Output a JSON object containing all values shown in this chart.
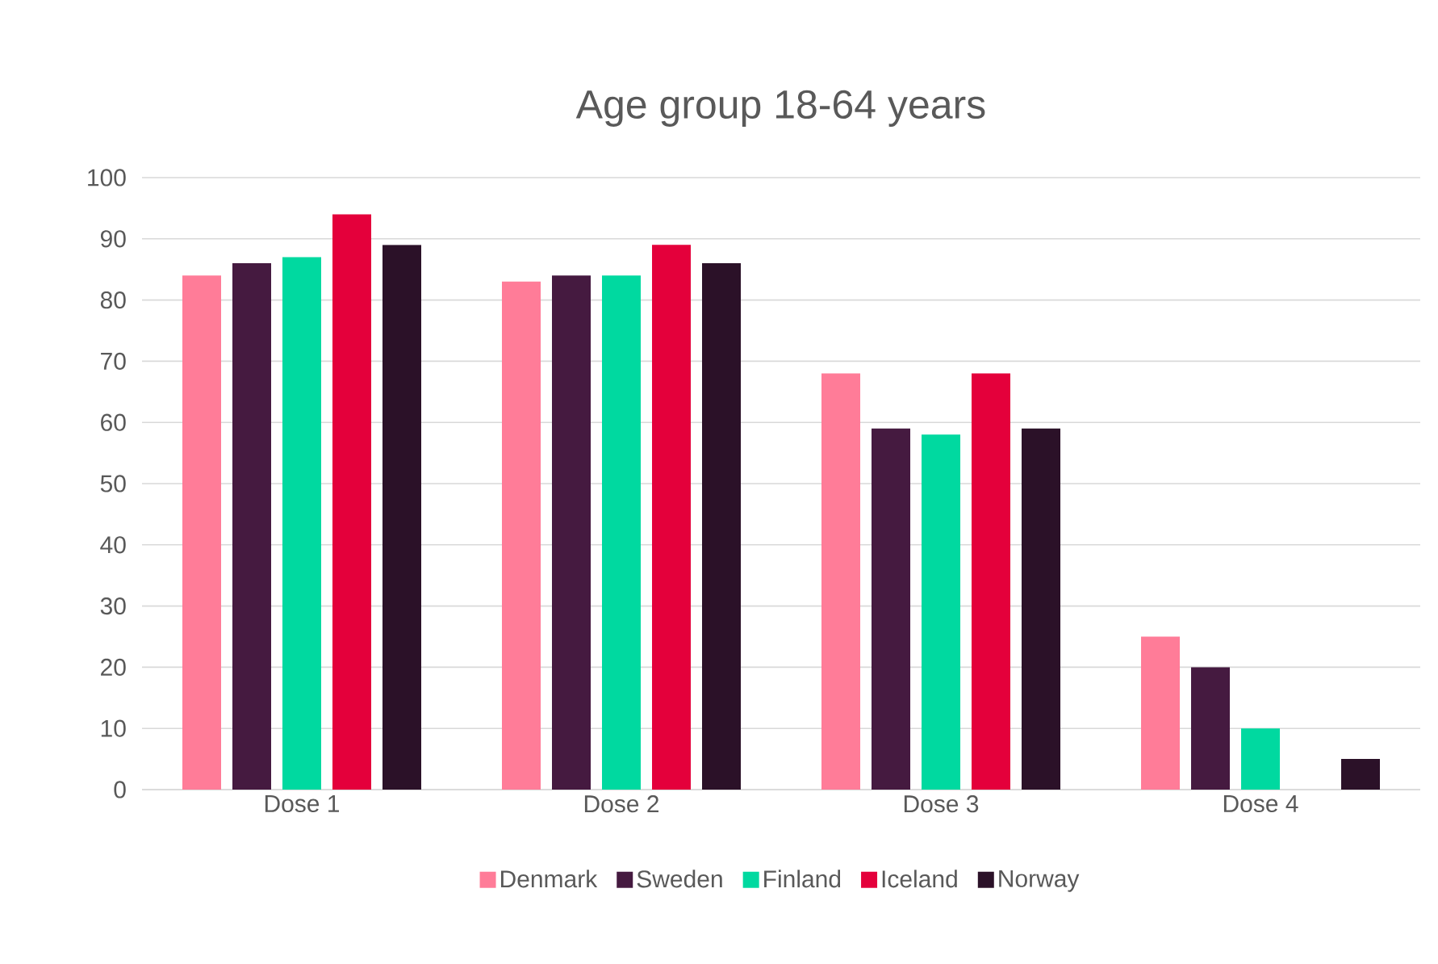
{
  "chart_data": {
    "type": "bar",
    "title": "Age group 18-64 years",
    "categories": [
      "Dose 1",
      "Dose 2",
      "Dose 3",
      "Dose 4"
    ],
    "series": [
      {
        "name": "Denmark",
        "color": "#ff7c98",
        "values": [
          84,
          83,
          68,
          25
        ]
      },
      {
        "name": "Sweden",
        "color": "#451a40",
        "values": [
          86,
          84,
          59,
          20
        ]
      },
      {
        "name": "Finland",
        "color": "#00d9a0",
        "values": [
          87,
          84,
          58,
          10
        ]
      },
      {
        "name": "Iceland",
        "color": "#e4003b",
        "values": [
          94,
          89,
          68,
          null
        ]
      },
      {
        "name": "Norway",
        "color": "#2b1128",
        "values": [
          89,
          86,
          59,
          5
        ]
      }
    ],
    "ylim": [
      0,
      100
    ],
    "yticks": [
      0,
      10,
      20,
      30,
      40,
      50,
      60,
      70,
      80,
      90,
      100
    ],
    "grid": "y",
    "legend": "bottom"
  }
}
